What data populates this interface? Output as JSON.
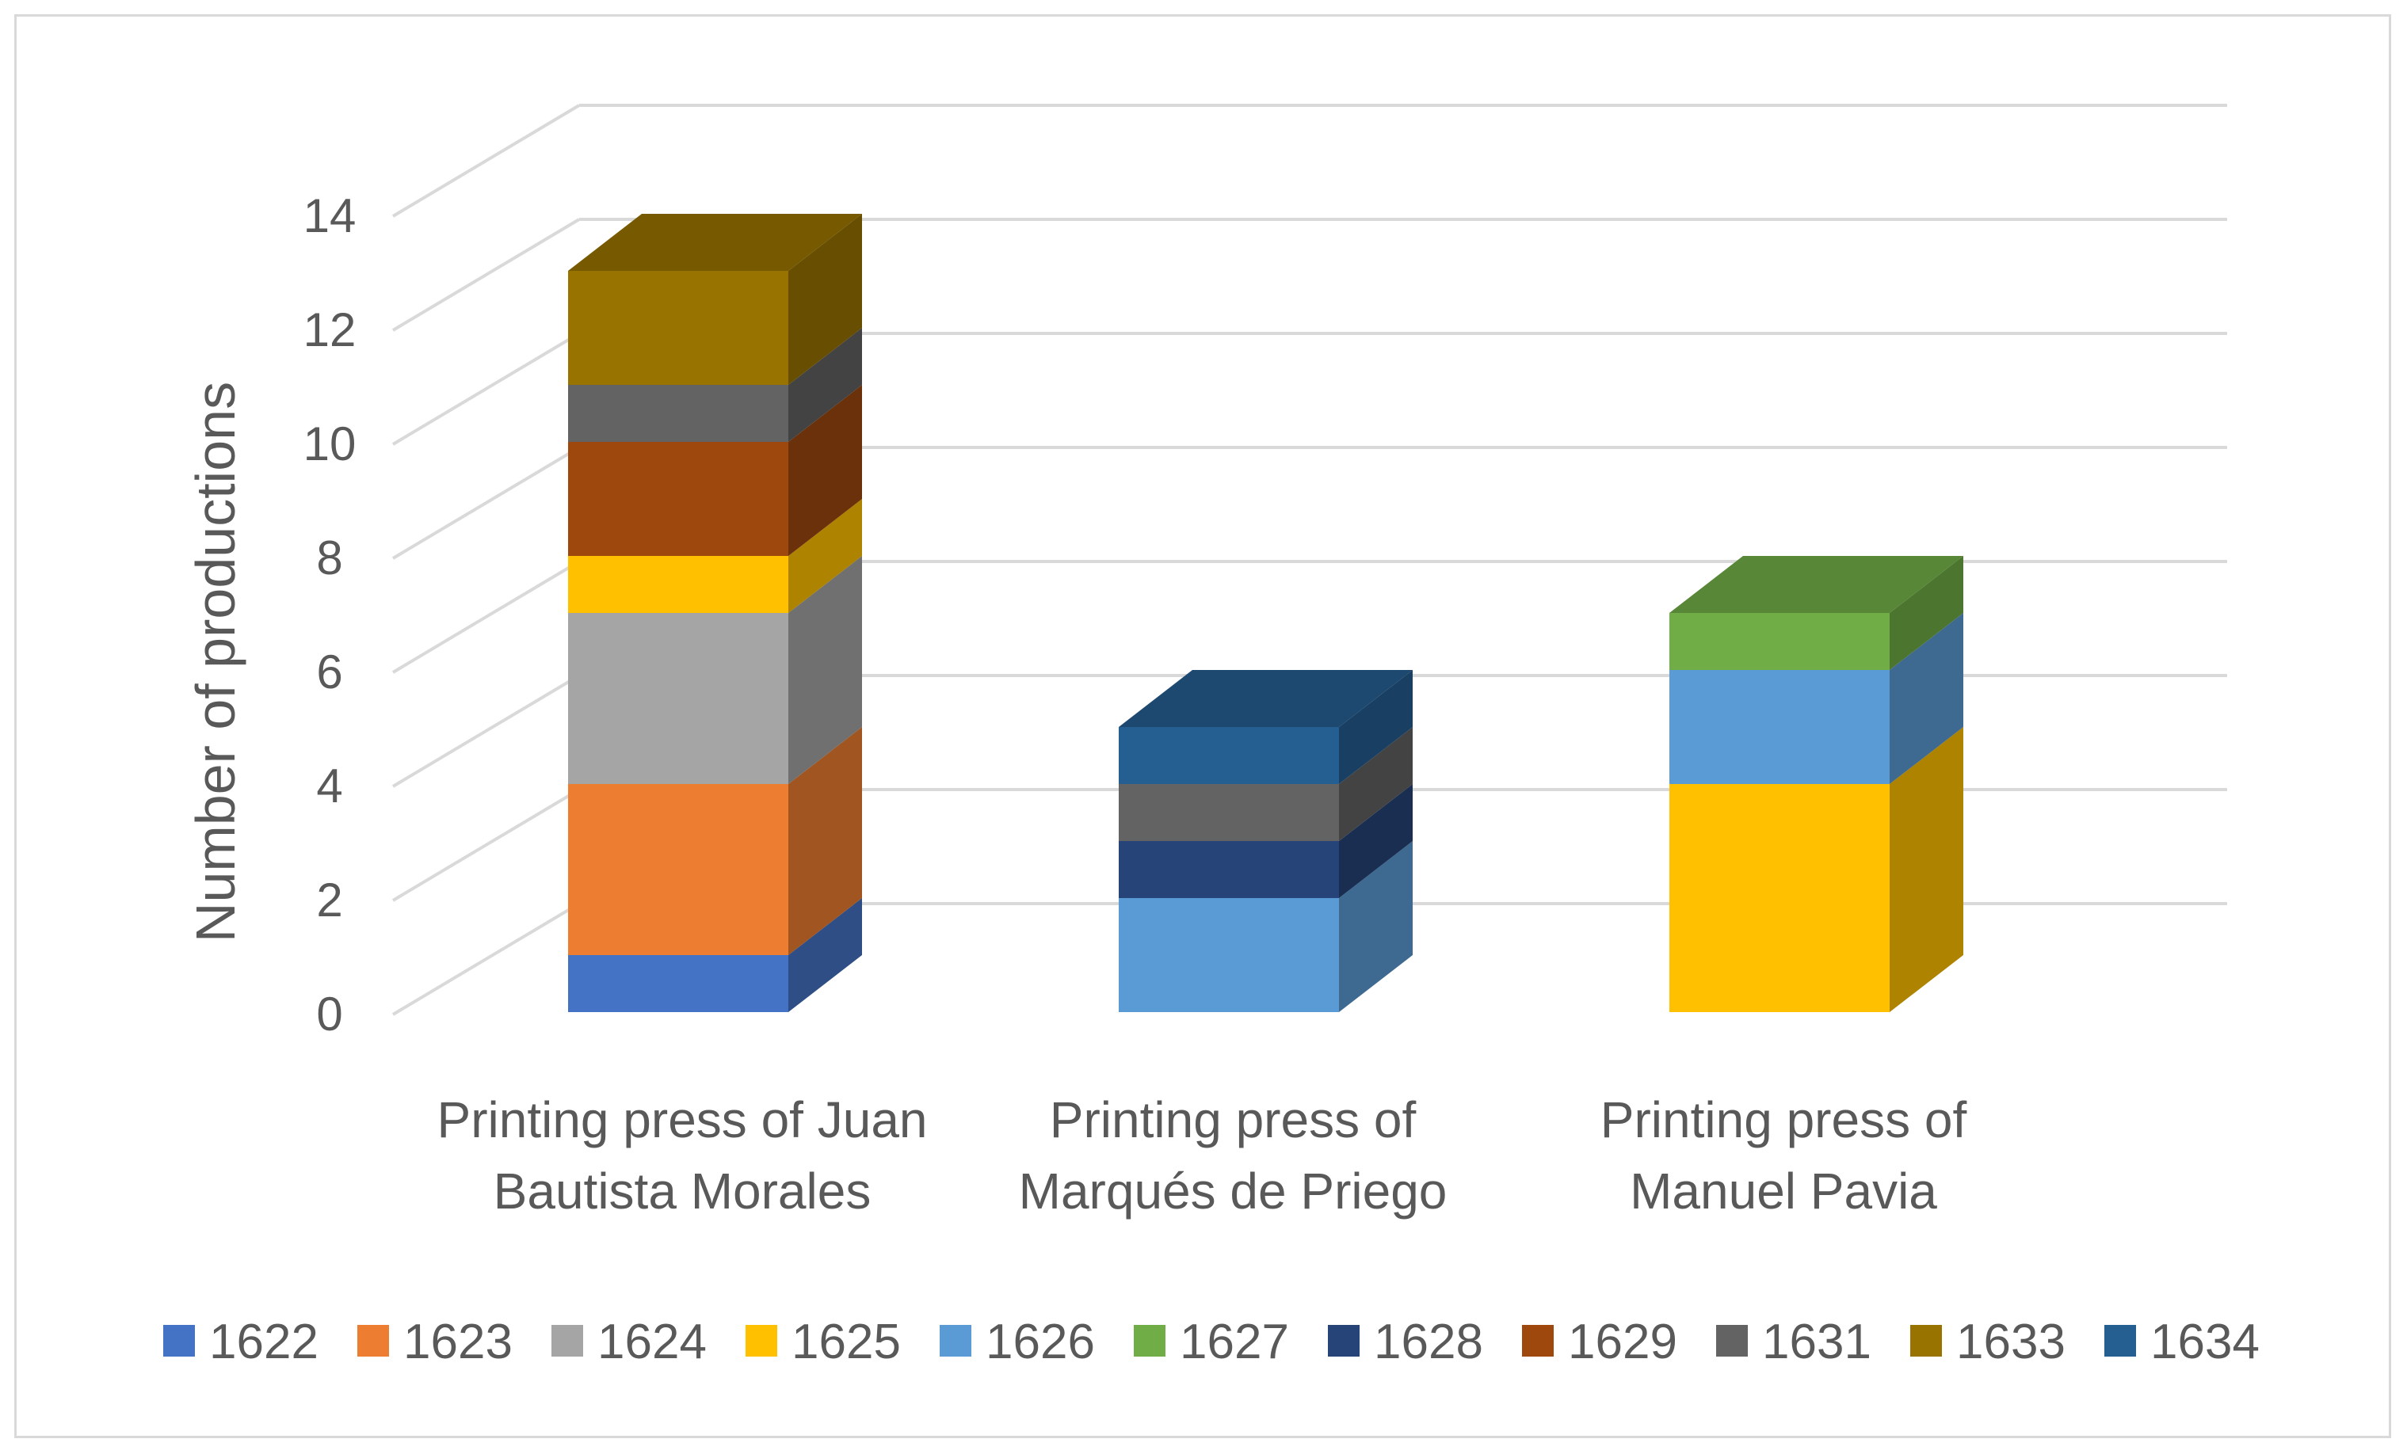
{
  "chart_data": {
    "type": "bar",
    "subtype": "3d-stacked-column",
    "ylabel": "Number of productions",
    "ylim": [
      0,
      14
    ],
    "yticks": [
      "0",
      "2",
      "4",
      "6",
      "8",
      "10",
      "12",
      "14"
    ],
    "grid": true,
    "legend_position": "bottom",
    "categories": [
      [
        "Printing press of Juan",
        "Bautista Morales"
      ],
      [
        "Printing press of",
        "Marqués de Priego"
      ],
      [
        "Printing press of",
        "Manuel Pavia"
      ]
    ],
    "series": [
      {
        "name": "1622",
        "color": "#4472C4",
        "values": [
          1,
          0,
          0
        ]
      },
      {
        "name": "1623",
        "color": "#ED7D31",
        "values": [
          3,
          0,
          0
        ]
      },
      {
        "name": "1624",
        "color": "#A5A5A5",
        "values": [
          3,
          0,
          0
        ]
      },
      {
        "name": "1625",
        "color": "#FFC000",
        "values": [
          1,
          0,
          4
        ]
      },
      {
        "name": "1626",
        "color": "#5B9BD5",
        "values": [
          0,
          2,
          2
        ]
      },
      {
        "name": "1627",
        "color": "#70AD47",
        "values": [
          0,
          0,
          1
        ]
      },
      {
        "name": "1628",
        "color": "#264478",
        "values": [
          0,
          1,
          0
        ]
      },
      {
        "name": "1629",
        "color": "#9E480E",
        "values": [
          2,
          0,
          0
        ]
      },
      {
        "name": "1631",
        "color": "#636363",
        "values": [
          1,
          1,
          0
        ]
      },
      {
        "name": "1633",
        "color": "#997300",
        "values": [
          2,
          0,
          0
        ]
      },
      {
        "name": "1634",
        "color": "#255E91",
        "values": [
          0,
          1,
          0
        ]
      }
    ]
  }
}
